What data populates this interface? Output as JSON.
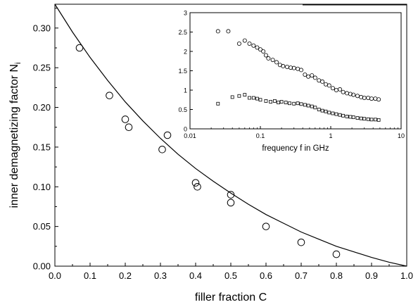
{
  "chart_data": [
    {
      "type": "scatter",
      "xlabel": "filler fraction C",
      "ylabel": "inner demagnetizing factor N",
      "ylabel_subscript": "i",
      "xlim": [
        0.0,
        1.0
      ],
      "ylim": [
        0.0,
        0.33
      ],
      "xticks": [
        "0.0",
        "0.1",
        "0.2",
        "0.3",
        "0.4",
        "0.5",
        "0.6",
        "0.7",
        "0.8",
        "0.9",
        "1.0"
      ],
      "yticks": [
        "0.00",
        "0.05",
        "0.10",
        "0.15",
        "0.20",
        "0.25",
        "0.30"
      ],
      "grid": false,
      "series": [
        {
          "marker": "circle",
          "x": [
            0.07,
            0.155,
            0.2,
            0.21,
            0.305,
            0.32,
            0.4,
            0.405,
            0.5,
            0.5,
            0.6,
            0.7,
            0.8
          ],
          "y": [
            0.275,
            0.215,
            0.185,
            0.175,
            0.147,
            0.165,
            0.105,
            0.1,
            0.09,
            0.08,
            0.05,
            0.03,
            0.015
          ]
        },
        {
          "style": "line",
          "x": [
            0.0,
            0.05,
            0.1,
            0.15,
            0.2,
            0.25,
            0.3,
            0.35,
            0.4,
            0.45,
            0.5,
            0.55,
            0.6,
            0.65,
            0.7,
            0.75,
            0.8,
            0.85,
            0.9,
            0.95,
            1.0
          ],
          "y": [
            0.33,
            0.295,
            0.263,
            0.234,
            0.207,
            0.183,
            0.161,
            0.141,
            0.123,
            0.107,
            0.092,
            0.078,
            0.065,
            0.054,
            0.043,
            0.034,
            0.025,
            0.018,
            0.011,
            0.005,
            0.0
          ]
        }
      ]
    },
    {
      "type": "scatter",
      "position": "inset-top-right",
      "xlabel": "frequency f in GHz",
      "x_scale": "log",
      "xlim": [
        0.01,
        10
      ],
      "ylim": [
        0,
        3
      ],
      "xticks": [
        "0.01",
        "0.1",
        "1",
        "10"
      ],
      "yticks": [
        "0",
        "0.5",
        "1",
        "1.5",
        "2",
        "2.5",
        "3"
      ],
      "series": [
        {
          "marker": "circle",
          "x": [
            0.025,
            0.035,
            0.05,
            0.06,
            0.07,
            0.08,
            0.09,
            0.1,
            0.11,
            0.12,
            0.13,
            0.15,
            0.17,
            0.19,
            0.21,
            0.24,
            0.27,
            0.3,
            0.34,
            0.38,
            0.43,
            0.48,
            0.54,
            0.6,
            0.68,
            0.76,
            0.85,
            0.95,
            1.07,
            1.2,
            1.35,
            1.5,
            1.7,
            1.9,
            2.1,
            2.4,
            2.7,
            3.0,
            3.4,
            3.8,
            4.3,
            4.8
          ],
          "y": [
            2.52,
            2.52,
            2.2,
            2.28,
            2.2,
            2.15,
            2.1,
            2.05,
            2.0,
            1.9,
            1.82,
            1.78,
            1.72,
            1.65,
            1.62,
            1.6,
            1.58,
            1.57,
            1.55,
            1.52,
            1.4,
            1.35,
            1.38,
            1.32,
            1.25,
            1.22,
            1.15,
            1.12,
            1.05,
            1.0,
            1.02,
            0.95,
            0.92,
            0.9,
            0.88,
            0.85,
            0.82,
            0.8,
            0.8,
            0.78,
            0.78,
            0.76
          ]
        },
        {
          "marker": "square",
          "x": [
            0.025,
            0.04,
            0.05,
            0.06,
            0.07,
            0.08,
            0.09,
            0.1,
            0.12,
            0.14,
            0.16,
            0.18,
            0.2,
            0.23,
            0.26,
            0.3,
            0.34,
            0.38,
            0.43,
            0.48,
            0.54,
            0.6,
            0.68,
            0.76,
            0.85,
            0.95,
            1.07,
            1.2,
            1.35,
            1.5,
            1.7,
            1.9,
            2.1,
            2.4,
            2.7,
            3.0,
            3.4,
            3.8,
            4.3,
            4.8
          ],
          "y": [
            0.65,
            0.82,
            0.85,
            0.88,
            0.8,
            0.8,
            0.78,
            0.75,
            0.72,
            0.7,
            0.72,
            0.68,
            0.7,
            0.68,
            0.66,
            0.65,
            0.66,
            0.64,
            0.62,
            0.6,
            0.58,
            0.55,
            0.5,
            0.47,
            0.45,
            0.42,
            0.4,
            0.38,
            0.36,
            0.34,
            0.32,
            0.31,
            0.3,
            0.28,
            0.27,
            0.26,
            0.25,
            0.24,
            0.24,
            0.23
          ]
        }
      ]
    }
  ]
}
